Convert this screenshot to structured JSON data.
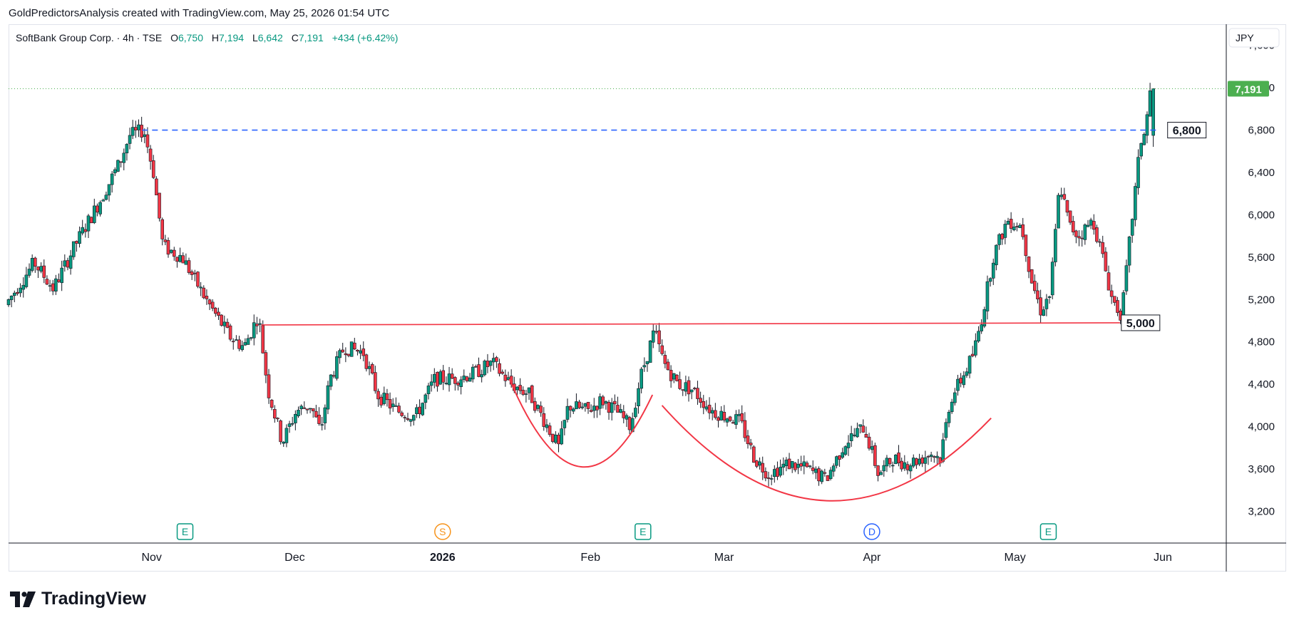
{
  "header": {
    "attribution": "GoldPredictorsAnalysis created with TradingView.com, May 25, 2026 01:54 UTC"
  },
  "legend": {
    "symbol": "SoftBank Group Corp. · 4h · TSE",
    "open_label": "O",
    "open": "6,750",
    "high_label": "H",
    "high": "7,194",
    "low_label": "L",
    "low": "6,642",
    "close_label": "C",
    "close": "7,191",
    "change": "+434 (+6.42%)"
  },
  "currency_button": "JPY",
  "brand": {
    "name": "TradingView"
  },
  "colors": {
    "up": "#089981",
    "down": "#f23645",
    "level_blue": "#2962ff",
    "pattern_red": "#f23645",
    "last_price_bg": "#4caf50"
  },
  "chart_data": {
    "type": "candlestick",
    "timeframe": "4h",
    "y_axis": {
      "ticks": [
        3200,
        3600,
        4000,
        4400,
        4800,
        5200,
        5600,
        6000,
        6400,
        6800,
        7200,
        7600
      ],
      "tick_labels": [
        "3,200",
        "3,600",
        "4,000",
        "4,400",
        "4,800",
        "5,200",
        "5,600",
        "6,000",
        "6,400",
        "6,800",
        "7,200",
        "7,600"
      ],
      "range": [
        2900,
        7800
      ]
    },
    "x_axis": {
      "labels": [
        {
          "label": "Nov",
          "date": "2025-11-01"
        },
        {
          "label": "Dec",
          "date": "2025-12-01"
        },
        {
          "label": "2026",
          "date": "2026-01-01",
          "bold": true
        },
        {
          "label": "Feb",
          "date": "2026-02-01"
        },
        {
          "label": "Mar",
          "date": "2026-03-01"
        },
        {
          "label": "Apr",
          "date": "2026-04-01"
        },
        {
          "label": "May",
          "date": "2026-05-01"
        },
        {
          "label": "Jun",
          "date": "2026-06-01"
        }
      ]
    },
    "price_path": [
      [
        "2025-10-02",
        5150
      ],
      [
        "2025-10-08",
        5550
      ],
      [
        "2025-10-12",
        5300
      ],
      [
        "2025-10-17",
        5750
      ],
      [
        "2025-10-22",
        6150
      ],
      [
        "2025-10-26",
        6500
      ],
      [
        "2025-10-28",
        6750
      ],
      [
        "2025-10-31",
        6800
      ],
      [
        "2025-11-02",
        6400
      ],
      [
        "2025-11-04",
        5700
      ],
      [
        "2025-11-08",
        5600
      ],
      [
        "2025-11-13",
        5200
      ],
      [
        "2025-11-18",
        4850
      ],
      [
        "2025-11-21",
        4750
      ],
      [
        "2025-11-24",
        5050
      ],
      [
        "2025-11-26",
        4350
      ],
      [
        "2025-11-29",
        3850
      ],
      [
        "2025-12-02",
        4150
      ],
      [
        "2025-12-05",
        4200
      ],
      [
        "2025-12-07",
        3950
      ],
      [
        "2025-12-09",
        4450
      ],
      [
        "2025-12-12",
        4750
      ],
      [
        "2025-12-16",
        4700
      ],
      [
        "2025-12-19",
        4300
      ],
      [
        "2025-12-23",
        4150
      ],
      [
        "2025-12-27",
        4100
      ],
      [
        "2025-12-31",
        4450
      ],
      [
        "2026-01-04",
        4450
      ],
      [
        "2026-01-08",
        4500
      ],
      [
        "2026-01-12",
        4600
      ],
      [
        "2026-01-16",
        4400
      ],
      [
        "2026-01-20",
        4300
      ],
      [
        "2026-01-23",
        4050
      ],
      [
        "2026-01-26",
        3800
      ],
      [
        "2026-01-28",
        4200
      ],
      [
        "2026-02-01",
        4150
      ],
      [
        "2026-02-04",
        4250
      ],
      [
        "2026-02-07",
        4150
      ],
      [
        "2026-02-10",
        4000
      ],
      [
        "2026-02-12",
        4450
      ],
      [
        "2026-02-15",
        4900
      ],
      [
        "2026-02-17",
        4600
      ],
      [
        "2026-02-20",
        4400
      ],
      [
        "2026-02-23",
        4350
      ],
      [
        "2026-02-27",
        4150
      ],
      [
        "2026-03-02",
        4100
      ],
      [
        "2026-03-05",
        4050
      ],
      [
        "2026-03-08",
        3700
      ],
      [
        "2026-03-11",
        3550
      ],
      [
        "2026-03-15",
        3650
      ],
      [
        "2026-03-19",
        3600
      ],
      [
        "2026-03-23",
        3500
      ],
      [
        "2026-03-27",
        3850
      ],
      [
        "2026-03-31",
        4000
      ],
      [
        "2026-04-03",
        3550
      ],
      [
        "2026-04-06",
        3700
      ],
      [
        "2026-04-09",
        3650
      ],
      [
        "2026-04-12",
        3700
      ],
      [
        "2026-04-14",
        3750
      ],
      [
        "2026-04-16",
        3700
      ],
      [
        "2026-04-18",
        4250
      ],
      [
        "2026-04-21",
        4500
      ],
      [
        "2026-04-23",
        4700
      ],
      [
        "2026-04-25",
        5100
      ],
      [
        "2026-04-27",
        5600
      ],
      [
        "2026-04-30",
        5950
      ],
      [
        "2026-05-03",
        5900
      ],
      [
        "2026-05-05",
        5400
      ],
      [
        "2026-05-07",
        5100
      ],
      [
        "2026-05-09",
        5250
      ],
      [
        "2026-05-11",
        6300
      ],
      [
        "2026-05-13",
        5900
      ],
      [
        "2026-05-15",
        5800
      ],
      [
        "2026-05-18",
        5950
      ],
      [
        "2026-05-20",
        5600
      ],
      [
        "2026-05-22",
        5200
      ],
      [
        "2026-05-24",
        5050
      ],
      [
        "2026-05-26",
        5900
      ],
      [
        "2026-05-28",
        6700
      ],
      [
        "2026-05-29",
        6800
      ],
      [
        "2026-05-30",
        7191
      ]
    ],
    "levels": [
      {
        "price": 6800,
        "label": "6,800",
        "style": "dashed",
        "color": "#2962ff"
      },
      {
        "price": 5000,
        "label": "5,000",
        "style": "solid",
        "color": "#f23645"
      }
    ],
    "last_price": {
      "value": 7191,
      "label": "7,191"
    },
    "events": [
      {
        "letter": "E",
        "date": "2025-11-08",
        "color": "#089981"
      },
      {
        "letter": "S",
        "date": "2026-01-01",
        "color": "#f7931a"
      },
      {
        "letter": "E",
        "date": "2026-02-12",
        "color": "#089981"
      },
      {
        "letter": "D",
        "date": "2026-04-01",
        "color": "#2962ff"
      },
      {
        "letter": "E",
        "date": "2026-05-08",
        "color": "#089981"
      }
    ],
    "annotations": [
      {
        "type": "arc",
        "note": "small cup",
        "start": [
          "2026-01-15",
          4450
        ],
        "end": [
          "2026-02-14",
          4300
        ],
        "bottom": 3620
      },
      {
        "type": "arc",
        "note": "large cup",
        "start": [
          "2026-02-16",
          4200
        ],
        "end": [
          "2026-04-26",
          4080
        ],
        "bottom": 3300
      }
    ]
  }
}
